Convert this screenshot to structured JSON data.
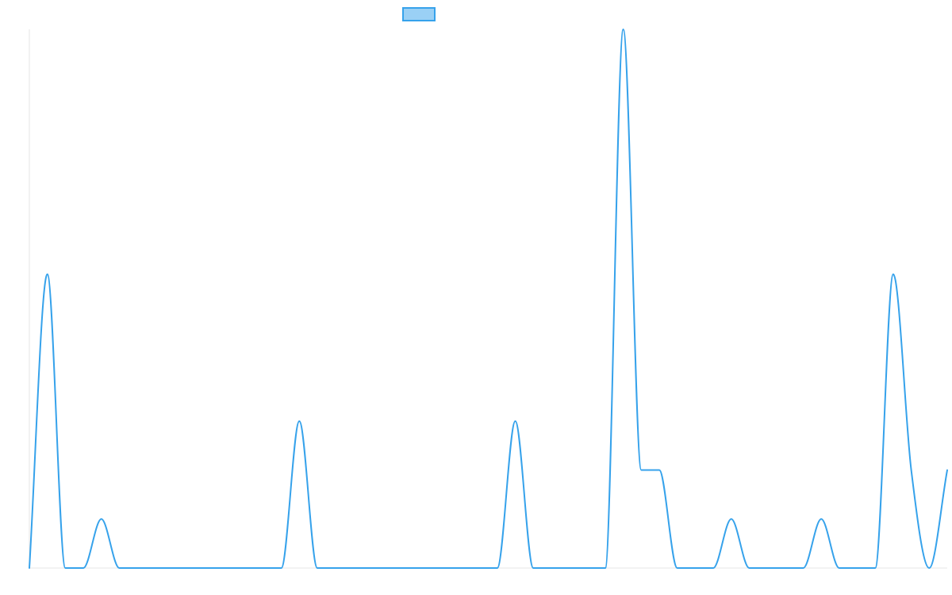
{
  "chart_data": {
    "type": "line",
    "title": "",
    "xlabel": "",
    "ylabel": "",
    "grid": false,
    "legend": "top",
    "x": [
      0,
      1,
      2,
      3,
      4,
      5,
      6,
      7,
      8,
      9,
      10,
      11,
      12,
      13,
      14,
      15,
      16,
      17,
      18,
      19,
      20,
      21,
      22,
      23,
      24,
      25,
      26,
      27,
      28,
      29,
      30,
      31,
      32,
      33,
      34,
      35,
      36,
      37,
      38,
      39,
      40,
      41,
      42,
      43,
      44,
      45,
      46,
      47,
      48,
      49,
      50,
      51
    ],
    "series": [
      {
        "name": "",
        "color": "#36a2eb",
        "fill": "#9ad0f5",
        "values": [
          0,
          6,
          0,
          0,
          1,
          0,
          0,
          0,
          0,
          0,
          0,
          0,
          0,
          0,
          0,
          3,
          0,
          0,
          0,
          0,
          0,
          0,
          0,
          0,
          0,
          0,
          0,
          3,
          0,
          0,
          0,
          0,
          0,
          11,
          2,
          2,
          0,
          0,
          0,
          1,
          0,
          0,
          0,
          0,
          1,
          0,
          0,
          0,
          6,
          2,
          0,
          2
        ]
      }
    ],
    "ylim": [
      0,
      11
    ]
  }
}
